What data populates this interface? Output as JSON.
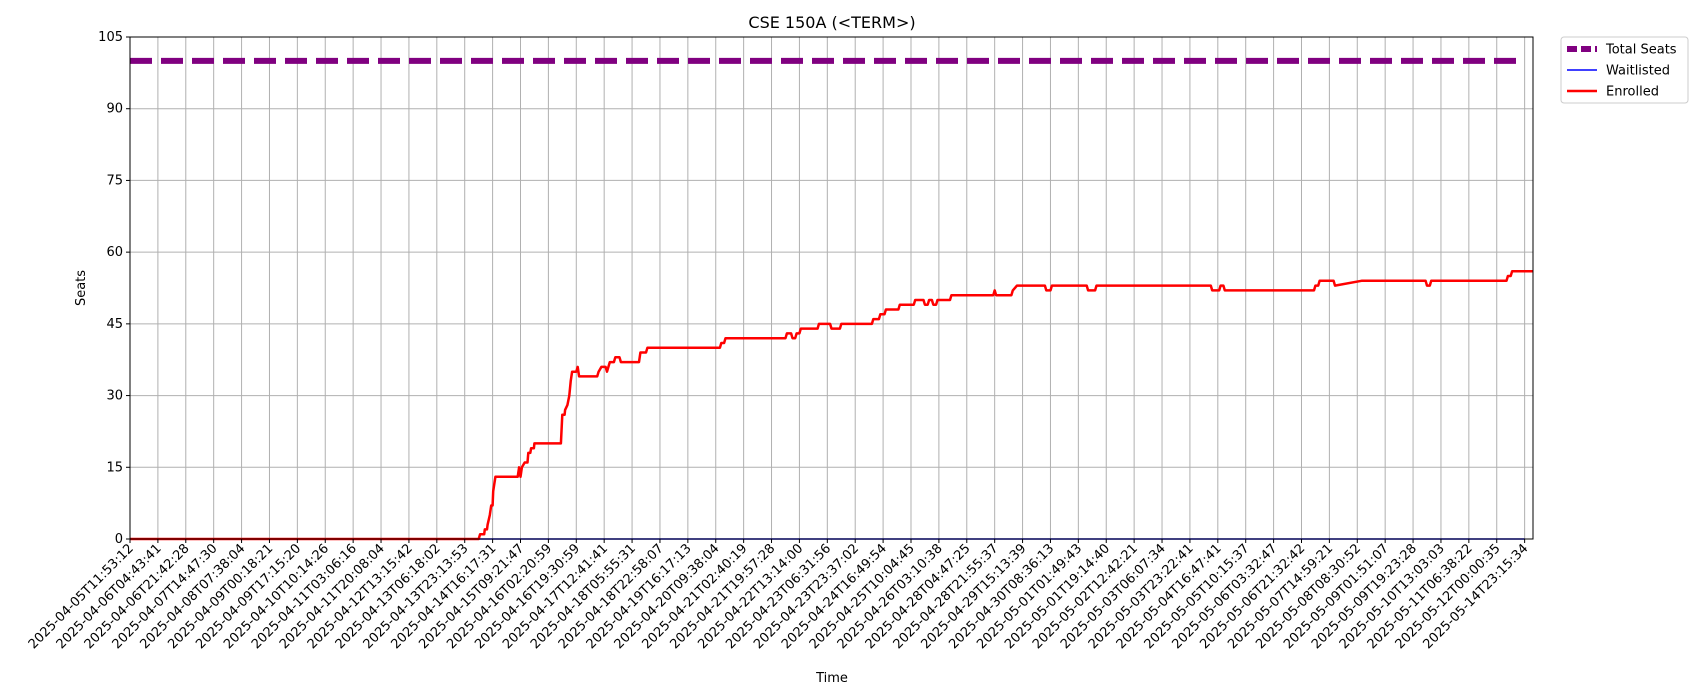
{
  "chart_data": {
    "type": "line",
    "title": "CSE 150A (<TERM>)",
    "xlabel": "Time",
    "ylabel": "Seats",
    "ylim": [
      0,
      105
    ],
    "yticks": [
      0,
      15,
      30,
      45,
      60,
      75,
      90,
      105
    ],
    "x_tick_labels": [
      "2025-04-05T11:53:12",
      "2025-04-06T04:43:41",
      "2025-04-06T21:42:28",
      "2025-04-07T14:47:30",
      "2025-04-08T07:38:04",
      "2025-04-09T00:18:21",
      "2025-04-09T17:15:20",
      "2025-04-10T10:14:26",
      "2025-04-11T03:06:16",
      "2025-04-11T20:08:04",
      "2025-04-12T13:15:42",
      "2025-04-13T06:18:02",
      "2025-04-13T23:13:53",
      "2025-04-14T16:17:31",
      "2025-04-15T09:21:47",
      "2025-04-16T02:20:59",
      "2025-04-16T19:30:59",
      "2025-04-17T12:41:41",
      "2025-04-18T05:55:31",
      "2025-04-18T22:58:07",
      "2025-04-19T16:17:13",
      "2025-04-20T09:38:04",
      "2025-04-21T02:40:19",
      "2025-04-21T19:57:28",
      "2025-04-22T13:14:00",
      "2025-04-23T06:31:56",
      "2025-04-23T23:37:02",
      "2025-04-24T16:49:54",
      "2025-04-25T10:04:45",
      "2025-04-26T03:10:38",
      "2025-04-28T04:47:25",
      "2025-04-28T21:55:37",
      "2025-04-29T15:13:39",
      "2025-04-30T08:36:13",
      "2025-05-01T01:49:43",
      "2025-05-01T19:14:40",
      "2025-05-02T12:42:21",
      "2025-05-03T06:07:34",
      "2025-05-03T23:22:41",
      "2025-05-04T16:47:41",
      "2025-05-05T10:15:37",
      "2025-05-06T03:32:47",
      "2025-05-06T21:32:42",
      "2025-05-07T14:59:21",
      "2025-05-08T08:30:52",
      "2025-05-09T01:51:07",
      "2025-05-09T19:23:28",
      "2025-05-10T13:03:03",
      "2025-05-11T06:38:22",
      "2025-05-12T00:00:35",
      "2025-05-14T23:15:34"
    ],
    "grid": true,
    "legend_position": "outside top-right",
    "series": [
      {
        "name": "Total Seats",
        "color": "#800080",
        "style": "dashed",
        "values": [
          [
            0,
            100
          ],
          [
            50,
            100
          ]
        ]
      },
      {
        "name": "Waitlisted",
        "color": "#0000ff",
        "style": "solid",
        "values": [
          [
            0,
            0
          ],
          [
            50,
            0
          ]
        ]
      },
      {
        "name": "Enrolled",
        "color": "#ff0000",
        "style": "solid",
        "values": [
          [
            0,
            0
          ],
          [
            12.5,
            0
          ],
          [
            12.55,
            1
          ],
          [
            12.7,
            1
          ],
          [
            12.72,
            2
          ],
          [
            12.8,
            2
          ],
          [
            12.82,
            3
          ],
          [
            12.9,
            5
          ],
          [
            12.95,
            7
          ],
          [
            13.0,
            7
          ],
          [
            13.02,
            10
          ],
          [
            13.1,
            13
          ],
          [
            13.9,
            13
          ],
          [
            13.95,
            15
          ],
          [
            14.0,
            13
          ],
          [
            14.05,
            15
          ],
          [
            14.15,
            16
          ],
          [
            14.25,
            16
          ],
          [
            14.28,
            18
          ],
          [
            14.35,
            18
          ],
          [
            14.38,
            19
          ],
          [
            14.48,
            19
          ],
          [
            14.5,
            20
          ],
          [
            15.45,
            20
          ],
          [
            15.5,
            26
          ],
          [
            15.58,
            26
          ],
          [
            15.6,
            27
          ],
          [
            15.68,
            28
          ],
          [
            15.75,
            30
          ],
          [
            15.8,
            33
          ],
          [
            15.85,
            35
          ],
          [
            16.0,
            35
          ],
          [
            16.05,
            36
          ],
          [
            16.1,
            34
          ],
          [
            16.75,
            34
          ],
          [
            16.8,
            35
          ],
          [
            16.9,
            36
          ],
          [
            17.05,
            36
          ],
          [
            17.1,
            35
          ],
          [
            17.2,
            37
          ],
          [
            17.35,
            37
          ],
          [
            17.4,
            38
          ],
          [
            17.55,
            38
          ],
          [
            17.6,
            37
          ],
          [
            18.25,
            37
          ],
          [
            18.3,
            39
          ],
          [
            18.5,
            39
          ],
          [
            18.55,
            40
          ],
          [
            21.15,
            40
          ],
          [
            21.2,
            41
          ],
          [
            21.3,
            41
          ],
          [
            21.35,
            42
          ],
          [
            23.5,
            42
          ],
          [
            23.55,
            43
          ],
          [
            23.7,
            43
          ],
          [
            23.75,
            42
          ],
          [
            23.85,
            42
          ],
          [
            23.9,
            43
          ],
          [
            24.0,
            43
          ],
          [
            24.05,
            44
          ],
          [
            24.65,
            44
          ],
          [
            24.7,
            45
          ],
          [
            25.1,
            45
          ],
          [
            25.15,
            44
          ],
          [
            25.45,
            44
          ],
          [
            25.5,
            45
          ],
          [
            26.6,
            45
          ],
          [
            26.65,
            46
          ],
          [
            26.85,
            46
          ],
          [
            26.9,
            47
          ],
          [
            27.05,
            47
          ],
          [
            27.1,
            48
          ],
          [
            27.55,
            48
          ],
          [
            27.6,
            49
          ],
          [
            28.1,
            49
          ],
          [
            28.15,
            50
          ],
          [
            28.45,
            50
          ],
          [
            28.5,
            49
          ],
          [
            28.6,
            49
          ],
          [
            28.65,
            50
          ],
          [
            28.75,
            50
          ],
          [
            28.8,
            49
          ],
          [
            28.9,
            49
          ],
          [
            28.95,
            50
          ],
          [
            29.4,
            50
          ],
          [
            29.45,
            51
          ],
          [
            30.95,
            51
          ],
          [
            31.0,
            52
          ],
          [
            31.05,
            51
          ],
          [
            31.6,
            51
          ],
          [
            31.65,
            52
          ],
          [
            31.8,
            53
          ],
          [
            32.8,
            53
          ],
          [
            32.85,
            52
          ],
          [
            33.0,
            52
          ],
          [
            33.05,
            53
          ],
          [
            34.3,
            53
          ],
          [
            34.35,
            52
          ],
          [
            34.6,
            52
          ],
          [
            34.65,
            53
          ],
          [
            38.75,
            53
          ],
          [
            38.8,
            52
          ],
          [
            39.05,
            52
          ],
          [
            39.1,
            53
          ],
          [
            39.2,
            53
          ],
          [
            39.25,
            52
          ],
          [
            42.45,
            52
          ],
          [
            42.5,
            53
          ],
          [
            42.6,
            53
          ],
          [
            42.65,
            54
          ],
          [
            43.15,
            54
          ],
          [
            43.2,
            53
          ],
          [
            44.15,
            54
          ],
          [
            46.45,
            54
          ],
          [
            46.5,
            53
          ],
          [
            46.6,
            53
          ],
          [
            46.65,
            54
          ],
          [
            49.35,
            54
          ],
          [
            49.4,
            55
          ],
          [
            49.5,
            55
          ],
          [
            49.55,
            56
          ],
          [
            50.3,
            56
          ]
        ]
      }
    ]
  }
}
